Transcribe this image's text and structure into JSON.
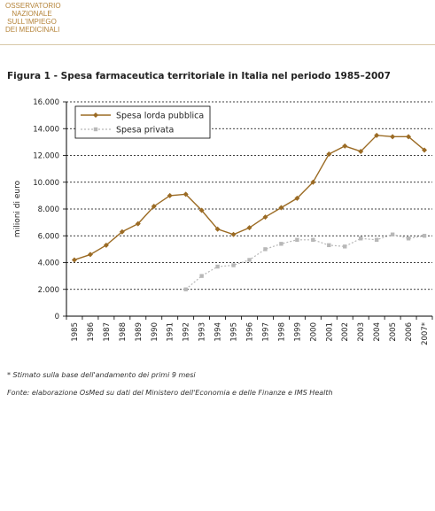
{
  "header": {
    "logo_lines": [
      "OSSERVATORIO",
      "NAZIONALE",
      "SULL'IMPIEGO",
      "DEI MEDICINALI"
    ]
  },
  "figure_title": "Figura 1 - Spesa farmaceutica territoriale in Italia nel periodo 1985–2007",
  "notes": {
    "asterisk": "*   Stimato sulla base dell'andamento dei primi 9 mesi",
    "source": "Fonte: elaborazione OsMed su dati del Ministero dell'Economia e delle Finanze e IMS Health"
  },
  "colors": {
    "series_pubblica": "#9b6b24",
    "series_privata": "#b8b8b8",
    "grid": "#000000"
  },
  "chart_data": {
    "type": "line",
    "title": "",
    "xlabel": "",
    "ylabel": "milioni di euro",
    "ylim": [
      0,
      16000
    ],
    "yticks": [
      0,
      2000,
      4000,
      6000,
      8000,
      10000,
      12000,
      14000,
      16000
    ],
    "ytick_labels": [
      "0",
      "2.000",
      "4.000",
      "6.000",
      "8.000",
      "10.000",
      "12.000",
      "14.000",
      "16.000"
    ],
    "grid": "horizontal dashed",
    "legend_position": "top-left",
    "categories": [
      "1985",
      "1986",
      "1987",
      "1988",
      "1989",
      "1990",
      "1991",
      "1992",
      "1993",
      "1994",
      "1995",
      "1996",
      "1997",
      "1998",
      "1999",
      "2000",
      "2001",
      "2002",
      "2003",
      "2004",
      "2005",
      "2006",
      "2007*"
    ],
    "series": [
      {
        "name": "Spesa lorda pubblica",
        "marker": "diamond",
        "values": [
          4200,
          4600,
          5300,
          6300,
          6900,
          8200,
          9000,
          9100,
          7900,
          6500,
          6100,
          6600,
          7400,
          8100,
          8800,
          10000,
          12100,
          12700,
          12300,
          13500,
          13400,
          13400,
          12400
        ]
      },
      {
        "name": "Spesa privata",
        "marker": "square",
        "values": [
          null,
          null,
          null,
          null,
          null,
          null,
          null,
          2000,
          3000,
          3700,
          3800,
          4200,
          5000,
          5400,
          5700,
          5700,
          5300,
          5200,
          5800,
          5700,
          6100,
          5800,
          6000
        ]
      }
    ]
  }
}
